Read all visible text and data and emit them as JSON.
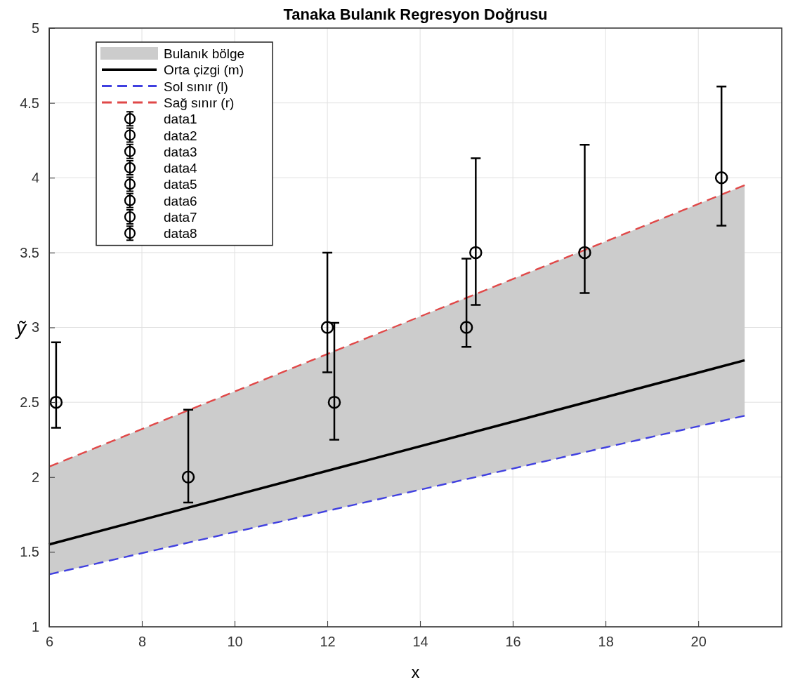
{
  "chart_data": {
    "type": "scatter",
    "title": "Tanaka Bulanık Regresyon Doğrusu",
    "xlabel": "x",
    "ylabel": "ỹ",
    "xlim": [
      6,
      21.8
    ],
    "ylim": [
      1,
      5
    ],
    "xticks": [
      6,
      8,
      10,
      12,
      14,
      16,
      18,
      20
    ],
    "yticks": [
      1,
      1.5,
      2,
      2.5,
      3,
      3.5,
      4,
      4.5,
      5
    ],
    "grid": true,
    "legend": "top left",
    "marker": "circle",
    "series": [
      {
        "name": "Bulanık bölge",
        "type": "area",
        "color": "#cccccc",
        "marker": "none",
        "x": [
          6,
          21
        ],
        "values": [
          null,
          null
        ],
        "lower": [
          1.35,
          2.41
        ],
        "upper": [
          2.07,
          3.95
        ]
      },
      {
        "name": "Orta çizgi (m)",
        "type": "line",
        "color": "#000000",
        "marker": "none",
        "line_style": "solid",
        "x": [
          6,
          21
        ],
        "values": [
          1.55,
          2.78
        ]
      },
      {
        "name": "Sol sınır (l)",
        "type": "line",
        "color": "#4040e0",
        "marker": "none",
        "line_style": "dashed",
        "x": [
          6,
          21
        ],
        "values": [
          1.35,
          2.41
        ]
      },
      {
        "name": "Sağ sınır (r)",
        "type": "line",
        "color": "#e04848",
        "marker": "none",
        "line_style": "dashed",
        "x": [
          6,
          21
        ],
        "values": [
          2.07,
          3.95
        ]
      },
      {
        "name": "data1",
        "color": "#000000",
        "x": [
          6.15
        ],
        "values": [
          2.5
        ],
        "errors": [
          [
            2.33,
            2.9
          ]
        ]
      },
      {
        "name": "data2",
        "color": "#000000",
        "x": [
          9
        ],
        "values": [
          2.0
        ],
        "errors": [
          [
            1.83,
            2.45
          ]
        ]
      },
      {
        "name": "data3",
        "color": "#000000",
        "x": [
          12
        ],
        "values": [
          3.0
        ],
        "errors": [
          [
            2.7,
            3.5
          ]
        ]
      },
      {
        "name": "data4",
        "color": "#000000",
        "x": [
          12.15
        ],
        "values": [
          2.5
        ],
        "errors": [
          [
            2.25,
            3.03
          ]
        ]
      },
      {
        "name": "data5",
        "color": "#000000",
        "x": [
          15
        ],
        "values": [
          3.0
        ],
        "errors": [
          [
            2.87,
            3.46
          ]
        ]
      },
      {
        "name": "data6",
        "color": "#000000",
        "x": [
          15.2
        ],
        "values": [
          3.5
        ],
        "errors": [
          [
            3.15,
            4.13
          ]
        ]
      },
      {
        "name": "data7",
        "color": "#000000",
        "x": [
          17.55
        ],
        "values": [
          3.5
        ],
        "errors": [
          [
            3.23,
            4.22
          ]
        ]
      },
      {
        "name": "data8",
        "color": "#000000",
        "x": [
          20.5
        ],
        "values": [
          4.0
        ],
        "errors": [
          [
            3.68,
            4.61
          ]
        ]
      }
    ]
  }
}
